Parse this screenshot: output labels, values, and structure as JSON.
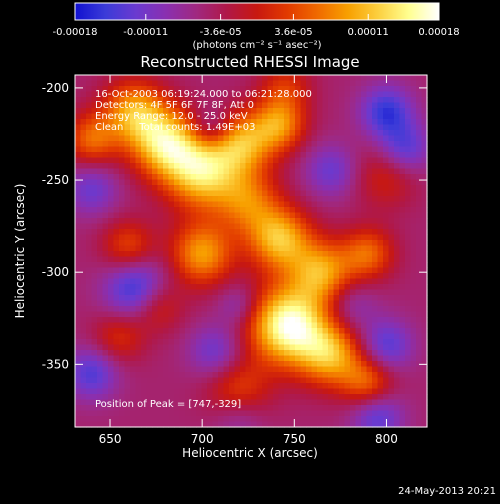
{
  "colorbar": {
    "colors": [
      "#1010d0",
      "#3b3bd8",
      "#6a3ad0",
      "#8a2fb0",
      "#a02880",
      "#b01848",
      "#c81810",
      "#e23a00",
      "#f06a00",
      "#f8a000",
      "#fcd040",
      "#ffff90",
      "#ffffff"
    ],
    "ticks": [
      "-0.00018",
      "-0.00011",
      "-3.6e-05",
      "3.6e-05",
      "0.00011",
      "0.00018"
    ],
    "tick_values": [
      -0.00018,
      -0.00011,
      -3.6e-05,
      3.6e-05,
      0.00011,
      0.00018
    ],
    "range": [
      -0.00018,
      0.00018
    ],
    "unit_label": "(photons cm⁻² s⁻¹ asec⁻²)"
  },
  "chart_data": {
    "type": "heatmap",
    "title": "Reconstructed RHESSI Image",
    "xlabel": "Heliocentric X (arcsec)",
    "ylabel": "Heliocentric Y (arcsec)",
    "xlim": [
      631,
      822
    ],
    "ylim": [
      -384,
      -193
    ],
    "xticks": [
      650,
      700,
      750,
      800
    ],
    "yticks": [
      -200,
      -250,
      -300,
      -350
    ],
    "annotations": [
      "16-Oct-2003 06:19:24.000 to 06:21:28.000",
      "Detectors: 4F 5F 6F 7F 8F, Att 0",
      "Energy Range: 12.0 - 25.0 keV",
      "Clean     Total counts: 1.49E+03"
    ],
    "peak_label": "Position of Peak = [747,-329]",
    "peak": [
      747,
      -329
    ],
    "sources": [
      {
        "x": 640,
        "y": -228,
        "amp": 0.6,
        "r": 10
      },
      {
        "x": 663,
        "y": -213,
        "amp": 0.8,
        "r": 12
      },
      {
        "x": 680,
        "y": -230,
        "amp": 1.0,
        "r": 13
      },
      {
        "x": 700,
        "y": -246,
        "amp": 1.0,
        "r": 14
      },
      {
        "x": 722,
        "y": -230,
        "amp": 0.8,
        "r": 12
      },
      {
        "x": 742,
        "y": -220,
        "amp": 0.7,
        "r": 10
      },
      {
        "x": 725,
        "y": -262,
        "amp": 0.6,
        "r": 12
      },
      {
        "x": 700,
        "y": -290,
        "amp": 0.8,
        "r": 12
      },
      {
        "x": 742,
        "y": -282,
        "amp": 0.9,
        "r": 12
      },
      {
        "x": 765,
        "y": -300,
        "amp": 0.8,
        "r": 12
      },
      {
        "x": 790,
        "y": -290,
        "amp": 0.6,
        "r": 10
      },
      {
        "x": 747,
        "y": -329,
        "amp": 1.3,
        "r": 15
      },
      {
        "x": 770,
        "y": -345,
        "amp": 0.8,
        "r": 12
      },
      {
        "x": 790,
        "y": -360,
        "amp": 0.6,
        "r": 10
      },
      {
        "x": 660,
        "y": -286,
        "amp": 0.5,
        "r": 10
      },
      {
        "x": 675,
        "y": -318,
        "amp": 0.5,
        "r": 10
      },
      {
        "x": 720,
        "y": -365,
        "amp": 0.5,
        "r": 12
      },
      {
        "x": 800,
        "y": -248,
        "amp": 0.35,
        "r": 12
      },
      {
        "x": 745,
        "y": -200,
        "amp": 0.4,
        "r": 10
      },
      {
        "x": 655,
        "y": -335,
        "amp": 0.4,
        "r": 10
      },
      {
        "x": 800,
        "y": -213,
        "amp": -0.6,
        "r": 10
      },
      {
        "x": 810,
        "y": -233,
        "amp": -0.5,
        "r": 10
      },
      {
        "x": 770,
        "y": -245,
        "amp": -0.4,
        "r": 10
      },
      {
        "x": 665,
        "y": -310,
        "amp": -0.7,
        "r": 12
      },
      {
        "x": 640,
        "y": -255,
        "amp": -0.4,
        "r": 10
      },
      {
        "x": 640,
        "y": -355,
        "amp": -0.5,
        "r": 10
      },
      {
        "x": 707,
        "y": -343,
        "amp": -0.4,
        "r": 10
      },
      {
        "x": 720,
        "y": -318,
        "amp": -0.3,
        "r": 8
      },
      {
        "x": 780,
        "y": -318,
        "amp": -0.3,
        "r": 10
      },
      {
        "x": 800,
        "y": -340,
        "amp": -0.5,
        "r": 10
      },
      {
        "x": 795,
        "y": -378,
        "amp": -0.5,
        "r": 10
      },
      {
        "x": 705,
        "y": -222,
        "amp": -0.4,
        "r": 8
      },
      {
        "x": 720,
        "y": -378,
        "amp": -0.3,
        "r": 10
      }
    ]
  },
  "footer": {
    "timestamp": "24-May-2013 20:21"
  }
}
